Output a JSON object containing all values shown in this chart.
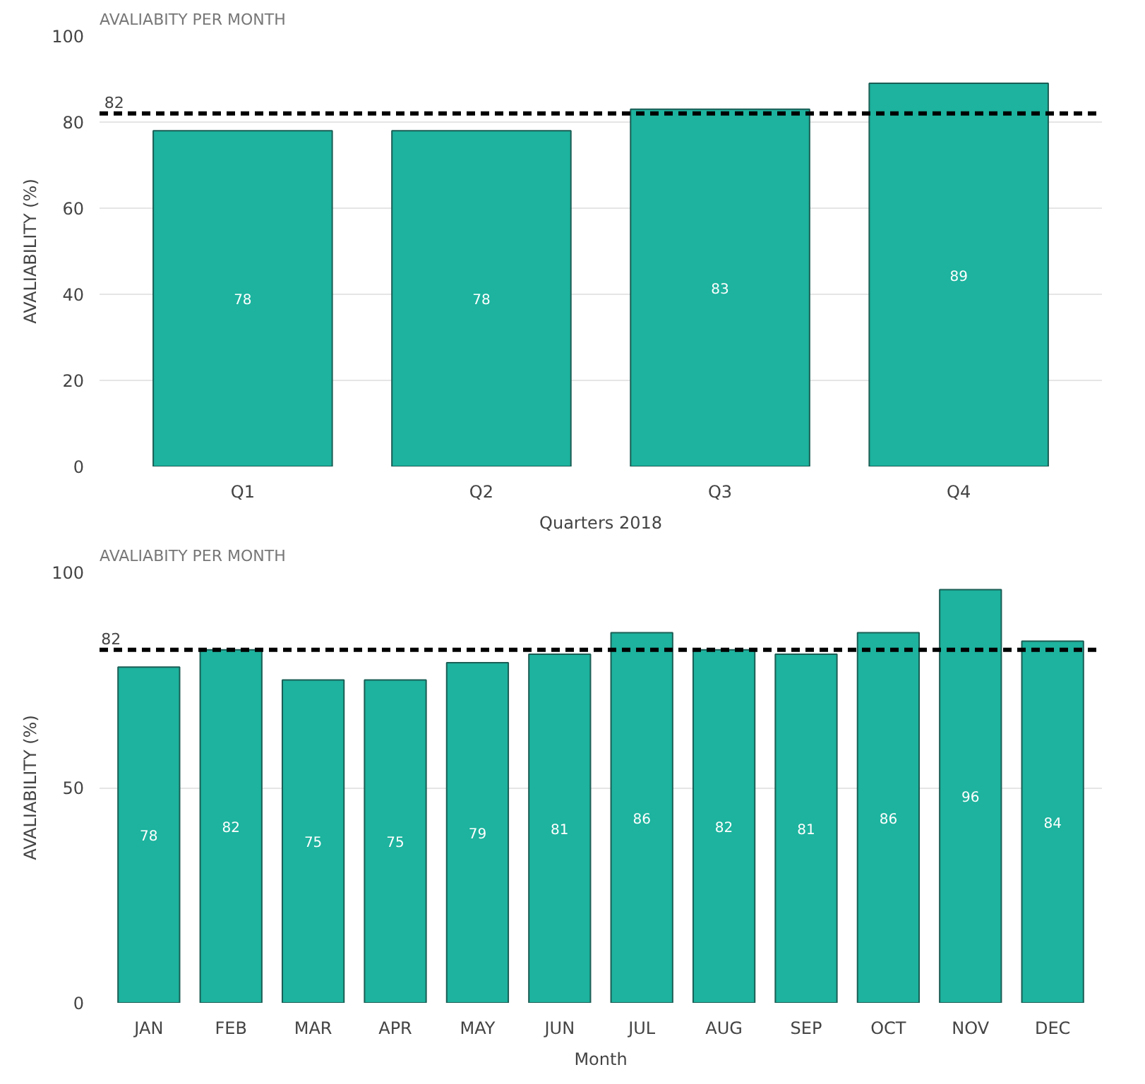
{
  "chart_data": [
    {
      "type": "bar",
      "title": "AVALIABITY PER MONTH",
      "xlabel": "Quarters 2018",
      "ylabel": "AVALIABILITY (%)",
      "categories": [
        "Q1",
        "Q2",
        "Q3",
        "Q4"
      ],
      "values": [
        78,
        78,
        83,
        89
      ],
      "color": "#1db39e",
      "ylim": [
        0,
        100
      ],
      "yticks": [
        0,
        20,
        40,
        60,
        80,
        100
      ],
      "grid": "y",
      "data_labels": true,
      "ref_lines": [
        {
          "axis": "y",
          "value": 82,
          "label": "82",
          "line_style": "dashed",
          "color": "#000000"
        }
      ]
    },
    {
      "type": "bar",
      "title": "AVALIABITY PER MONTH",
      "xlabel": "Month",
      "ylabel": "AVALIABILITY (%)",
      "categories": [
        "JAN",
        "FEB",
        "MAR",
        "APR",
        "MAY",
        "JUN",
        "JUL",
        "AUG",
        "SEP",
        "OCT",
        "NOV",
        "DEC"
      ],
      "values": [
        78,
        82,
        75,
        75,
        79,
        81,
        86,
        82,
        81,
        86,
        96,
        84
      ],
      "color": "#1db39e",
      "ylim": [
        0,
        100
      ],
      "yticks": [
        0,
        50,
        100
      ],
      "grid": "y",
      "data_labels": true,
      "ref_lines": [
        {
          "axis": "y",
          "value": 82,
          "label": "82",
          "line_style": "dashed",
          "color": "#000000"
        }
      ]
    }
  ]
}
